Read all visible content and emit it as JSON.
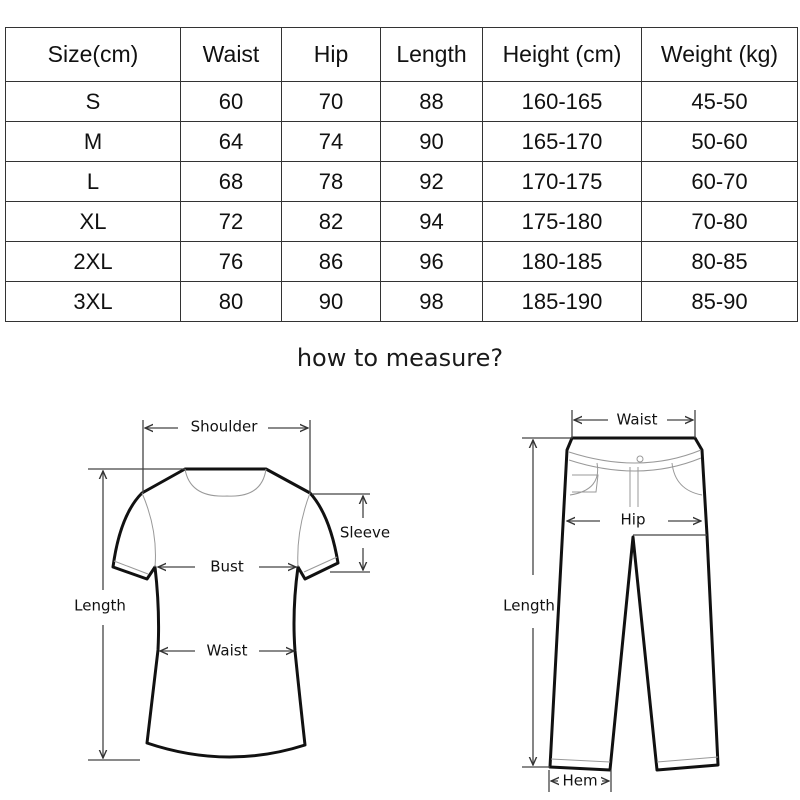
{
  "table": {
    "headers": [
      "Size(cm)",
      "Waist",
      "Hip",
      "Length",
      "Height (cm)",
      "Weight (kg)"
    ],
    "rows": [
      [
        "S",
        "60",
        "70",
        "88",
        "160-165",
        "45-50"
      ],
      [
        "M",
        "64",
        "74",
        "90",
        "165-170",
        "50-60"
      ],
      [
        "L",
        "68",
        "78",
        "92",
        "170-175",
        "60-70"
      ],
      [
        "XL",
        "72",
        "82",
        "94",
        "175-180",
        "70-80"
      ],
      [
        "2XL",
        "76",
        "86",
        "96",
        "180-185",
        "80-85"
      ],
      [
        "3XL",
        "80",
        "90",
        "98",
        "185-190",
        "85-90"
      ]
    ]
  },
  "title": "how to measure?",
  "shirt": {
    "shoulder": "Shoulder",
    "sleeve": "Sleeve",
    "bust": "Bust",
    "waist": "Waist",
    "length": "Length"
  },
  "pants": {
    "waist": "Waist",
    "hip": "Hip",
    "length": "Length",
    "hem": "Hem"
  }
}
